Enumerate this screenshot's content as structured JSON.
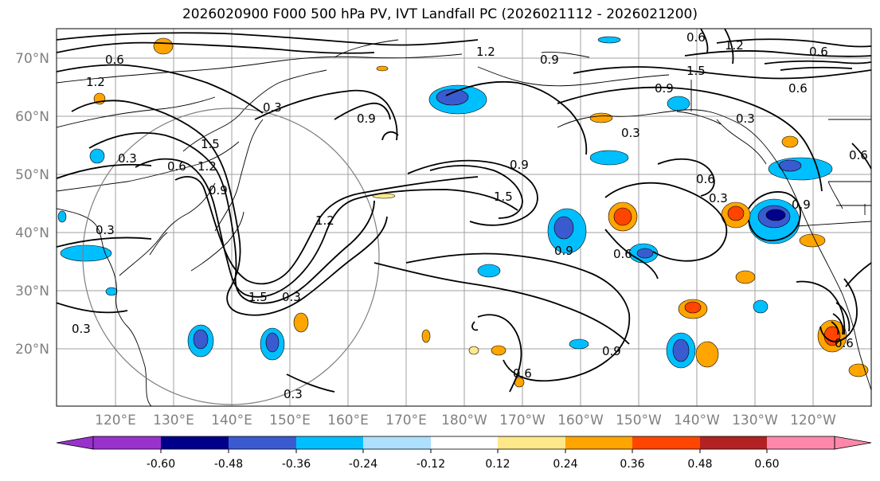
{
  "title": "2026020900 F000 500 hPa PV, IVT Landfall PC (2026021112 - 2026021200)",
  "latitude_labels": [
    "70°N",
    "60°N",
    "50°N",
    "40°N",
    "30°N",
    "20°N"
  ],
  "longitude_labels": [
    "120°E",
    "130°E",
    "140°E",
    "150°E",
    "160°E",
    "170°E",
    "180°W",
    "170°W",
    "160°W",
    "150°W",
    "140°W",
    "130°W",
    "120°W"
  ],
  "contour_labels": [
    "0.6",
    "1.2",
    "0.3",
    "1.5",
    "1.2",
    "0.6",
    "0.9",
    "1.2",
    "0.3",
    "0.9",
    "1.5",
    "0.3",
    "0.9",
    "0.6",
    "0.6",
    "0.9",
    "1.5",
    "1.2",
    "0.6",
    "1.2",
    "0.9",
    "0.3",
    "0.6",
    "0.3",
    "0.6",
    "0.9",
    "0.3",
    "0.3",
    "0.6",
    "0.9",
    "0.6",
    "0.3",
    "0.3",
    "1.5",
    "0.6",
    "0.9"
  ],
  "colorbar": {
    "ticks": [
      "-0.60",
      "-0.48",
      "-0.36",
      "-0.24",
      "-0.12",
      "0.12",
      "0.24",
      "0.36",
      "0.48",
      "0.60"
    ],
    "colors": [
      "#9932CC",
      "#00008B",
      "#3A5BD0",
      "#00BFFF",
      "#ADDFFF",
      "#FFFFFF",
      "#FFE88A",
      "#FFA500",
      "#FF4500",
      "#B22222",
      "#FF88AA"
    ]
  },
  "field_colors": {
    "neg_strong": "#00008B",
    "neg_mid": "#3A5BD0",
    "neg_weak": "#00BFFF",
    "neg_faint": "#ADDFFF",
    "pos_faint": "#FFE88A",
    "pos_weak": "#FFA500",
    "pos_mid": "#FF4500"
  }
}
